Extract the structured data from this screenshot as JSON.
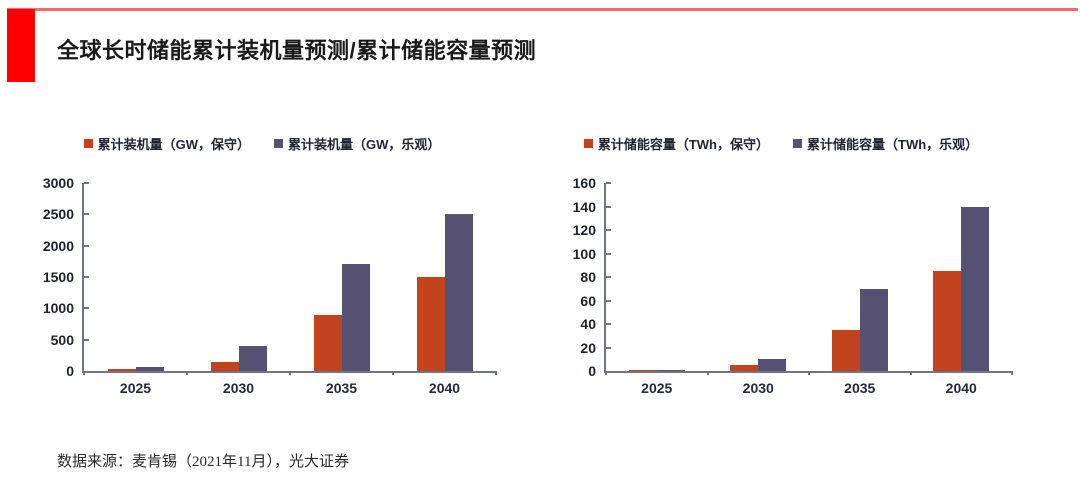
{
  "page": {
    "title": "全球长时储能累计装机量预测/累计储能容量预测",
    "source": "数据来源：麦肯锡（2021年11月），光大证券"
  },
  "colors": {
    "accent_red": "#fe0000",
    "top_rule_red": "#f96a6a",
    "conservative_bar": "#c2441f",
    "optimistic_bar": "#575273",
    "axis": "#6f7585",
    "tick_text": "#1d2129"
  },
  "chart_data": [
    {
      "type": "bar",
      "title": "全球长时储能累计装机量预测",
      "categories": [
        "2025",
        "2030",
        "2035",
        "2040"
      ],
      "series": [
        {
          "name": "累计装机量（GW，保守）",
          "color": "#c2441f",
          "values": [
            30,
            150,
            900,
            1500
          ]
        },
        {
          "name": "累计装机量（GW，乐观）",
          "color": "#575273",
          "values": [
            60,
            400,
            1700,
            2500
          ]
        }
      ],
      "xlabel": "",
      "ylabel": "",
      "ylim": [
        0,
        3000
      ],
      "ystep": 500,
      "grid": false,
      "legend_position": "top"
    },
    {
      "type": "bar",
      "title": "全球长时储能累计储能容量预测",
      "categories": [
        "2025",
        "2030",
        "2035",
        "2040"
      ],
      "series": [
        {
          "name": "累计储能容量（TWh，保守）",
          "color": "#c2441f",
          "values": [
            0.5,
            5,
            35,
            85
          ]
        },
        {
          "name": "累计储能容量（TWh，乐观）",
          "color": "#575273",
          "values": [
            1,
            10,
            70,
            140
          ]
        }
      ],
      "xlabel": "",
      "ylabel": "",
      "ylim": [
        0,
        160
      ],
      "ystep": 20,
      "grid": false,
      "legend_position": "top"
    }
  ]
}
